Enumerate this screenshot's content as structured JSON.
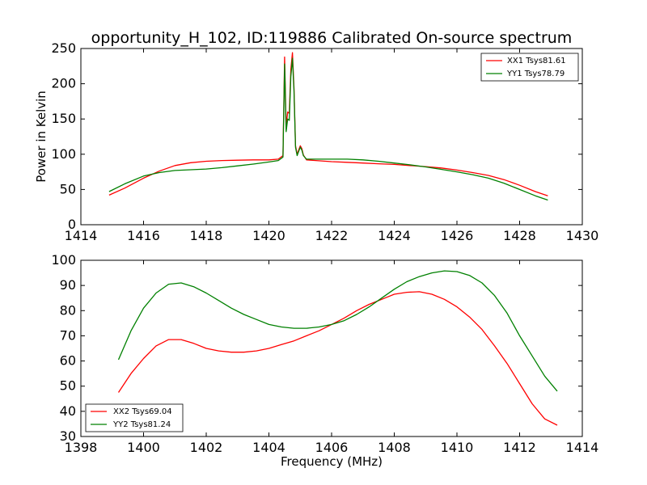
{
  "title": "opportunity_H_102, ID:119886 Calibrated On-source spectrum",
  "chart_data": [
    {
      "type": "line",
      "ylabel": "Power in Kelvin",
      "xlabel": "",
      "xlim": [
        1414,
        1430
      ],
      "ylim": [
        0,
        250
      ],
      "xticks": [
        "1414",
        "1416",
        "1418",
        "1420",
        "1422",
        "1424",
        "1426",
        "1428",
        "1430"
      ],
      "yticks": [
        "0",
        "50",
        "100",
        "150",
        "200",
        "250"
      ],
      "legend_position": "top-right",
      "series": [
        {
          "name": "XX1 Tsys81.61",
          "color": "#ff0000",
          "x": [
            1414.9,
            1415.4,
            1416.0,
            1416.5,
            1417.0,
            1417.5,
            1418.0,
            1418.5,
            1419.0,
            1419.5,
            1420.0,
            1420.3,
            1420.45,
            1420.5,
            1420.55,
            1420.6,
            1420.65,
            1420.7,
            1420.75,
            1420.8,
            1420.85,
            1420.9,
            1420.95,
            1421.0,
            1421.05,
            1421.1,
            1421.2,
            1421.5,
            1422.0,
            1422.5,
            1423.0,
            1423.5,
            1424.0,
            1424.5,
            1425.0,
            1425.5,
            1426.0,
            1426.5,
            1427.0,
            1427.5,
            1428.0,
            1428.5,
            1428.9
          ],
          "values": [
            42,
            52,
            66,
            76,
            84,
            88,
            90,
            91,
            91.5,
            92,
            92,
            93,
            98,
            238,
            140,
            160,
            158,
            220,
            244,
            195,
            112,
            100,
            106,
            112,
            108,
            99,
            92,
            91,
            89.5,
            88.5,
            87.5,
            86.5,
            85.5,
            84,
            82.5,
            80.5,
            77.5,
            74,
            70,
            64,
            56,
            47,
            41
          ]
        },
        {
          "name": "YY1 Tsys78.79",
          "color": "#008000",
          "x": [
            1414.9,
            1415.4,
            1416.0,
            1416.5,
            1417.0,
            1417.5,
            1418.0,
            1418.5,
            1419.0,
            1419.5,
            1420.0,
            1420.3,
            1420.45,
            1420.5,
            1420.55,
            1420.6,
            1420.65,
            1420.7,
            1420.75,
            1420.8,
            1420.85,
            1420.9,
            1420.95,
            1421.0,
            1421.05,
            1421.1,
            1421.2,
            1421.5,
            1422.0,
            1422.5,
            1423.0,
            1423.5,
            1424.0,
            1424.5,
            1425.0,
            1425.5,
            1426.0,
            1426.5,
            1427.0,
            1427.5,
            1428.0,
            1428.5,
            1428.9
          ],
          "values": [
            47,
            58,
            69,
            74,
            77,
            78,
            79,
            81,
            83.5,
            86,
            89,
            91,
            96,
            228,
            132,
            150,
            148,
            210,
            236,
            190,
            110,
            98,
            104,
            110,
            106,
            98,
            93,
            93,
            93,
            93,
            92,
            90,
            87.5,
            85,
            82,
            78.5,
            75,
            71,
            66,
            59,
            50,
            41,
            35
          ]
        }
      ]
    },
    {
      "type": "line",
      "ylabel": "",
      "xlabel": "Frequency (MHz)",
      "xlim": [
        1398,
        1414
      ],
      "ylim": [
        30,
        100
      ],
      "xticks": [
        "1398",
        "1400",
        "1402",
        "1404",
        "1406",
        "1408",
        "1410",
        "1412",
        "1414"
      ],
      "yticks": [
        "30",
        "40",
        "50",
        "60",
        "70",
        "80",
        "90",
        "100"
      ],
      "legend_position": "bottom-left",
      "series": [
        {
          "name": "XX2 Tsys69.04",
          "color": "#ff0000",
          "x": [
            1399.2,
            1399.6,
            1400.0,
            1400.4,
            1400.8,
            1401.2,
            1401.6,
            1402.0,
            1402.4,
            1402.8,
            1403.2,
            1403.6,
            1404.0,
            1404.4,
            1404.8,
            1405.2,
            1405.6,
            1406.0,
            1406.4,
            1406.8,
            1407.2,
            1407.6,
            1408.0,
            1408.4,
            1408.8,
            1409.2,
            1409.6,
            1410.0,
            1410.4,
            1410.8,
            1411.2,
            1411.6,
            1412.0,
            1412.4,
            1412.8,
            1413.2
          ],
          "values": [
            47.5,
            55,
            61,
            66,
            68.5,
            68.5,
            67,
            65,
            64,
            63.5,
            63.5,
            64,
            65,
            66.5,
            68,
            70,
            72,
            74.5,
            77,
            80,
            82.5,
            84.5,
            86.5,
            87.3,
            87.5,
            86.5,
            84.5,
            81.5,
            77.5,
            72.5,
            66,
            59,
            51,
            43,
            37,
            34.5
          ]
        },
        {
          "name": "YY2 Tsys81.24",
          "color": "#008000",
          "x": [
            1399.2,
            1399.6,
            1400.0,
            1400.4,
            1400.8,
            1401.2,
            1401.6,
            1402.0,
            1402.4,
            1402.8,
            1403.2,
            1403.6,
            1404.0,
            1404.4,
            1404.8,
            1405.2,
            1405.6,
            1406.0,
            1406.4,
            1406.8,
            1407.2,
            1407.6,
            1408.0,
            1408.4,
            1408.8,
            1409.2,
            1409.6,
            1410.0,
            1410.4,
            1410.8,
            1411.2,
            1411.6,
            1412.0,
            1412.4,
            1412.8,
            1413.2
          ],
          "values": [
            60.5,
            72,
            81,
            87,
            90.5,
            91,
            89.5,
            87,
            84,
            81,
            78.5,
            76.5,
            74.5,
            73.5,
            73,
            73,
            73.5,
            74.5,
            76,
            78.5,
            81.5,
            85,
            88.5,
            91.5,
            93.5,
            95,
            95.8,
            95.5,
            94,
            91,
            86,
            79,
            70,
            62,
            54,
            48
          ]
        }
      ]
    }
  ]
}
